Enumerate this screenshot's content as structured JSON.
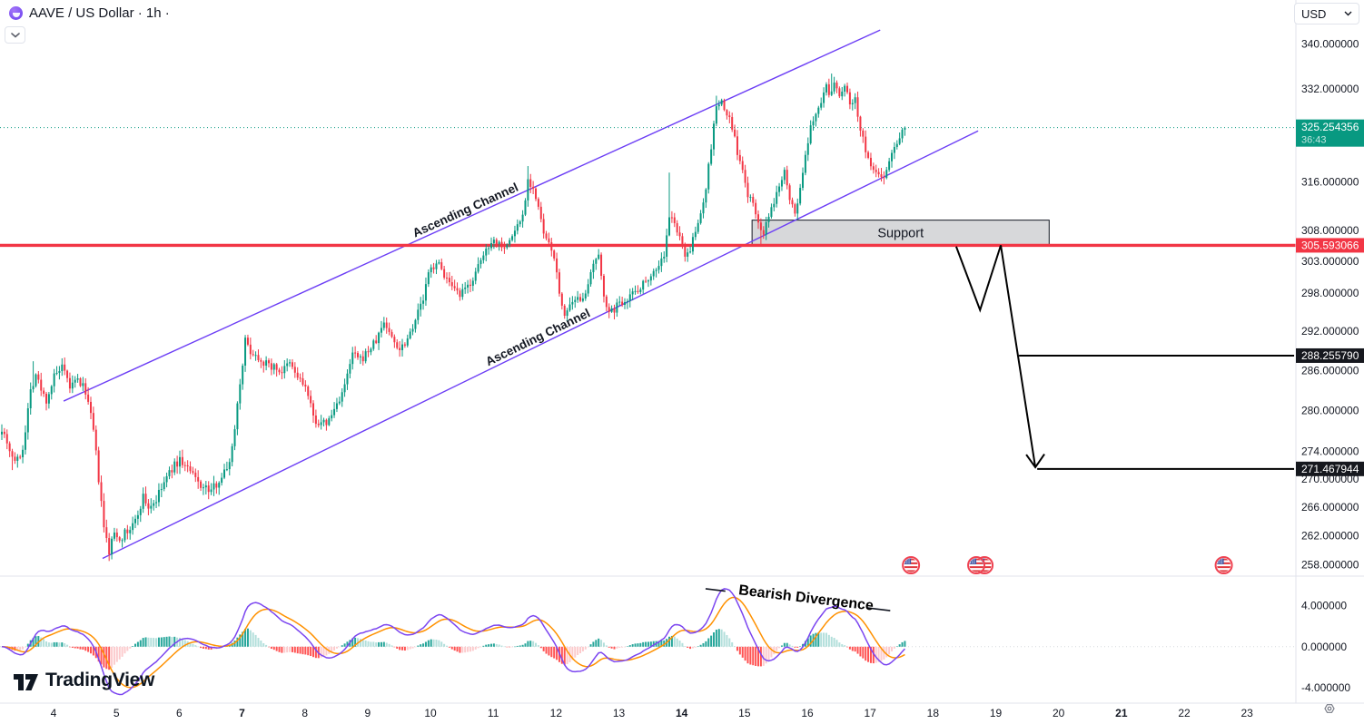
{
  "header": {
    "symbol_title": "AAVE / US Dollar · 1h ·"
  },
  "currency_selector": {
    "value": "USD"
  },
  "watermark_logo": {
    "text": "TradingView"
  },
  "chart_data": {
    "type": "candlestick",
    "title": "AAVE / US Dollar",
    "interval": "1h",
    "scale": "logarithmic",
    "colors": {
      "up": "#089981",
      "down": "#f23645",
      "channel": "#6c3ef5",
      "level_red": "#f23645",
      "macd_line": "#7b45f0",
      "signal_line": "#ff9100",
      "hist_up": "#26a69a",
      "hist_up_weak": "#b2dfdb",
      "hist_down": "#ff5252",
      "hist_down_weak": "#fccbcd",
      "last_price_label": "#089981",
      "target_label": "#16181e"
    },
    "price_axis": {
      "labels": [
        340,
        332,
        316,
        308,
        303,
        298,
        292,
        286,
        280,
        274,
        270,
        266,
        262,
        258
      ],
      "format_decimals": 6
    },
    "time_axis": {
      "days": [
        4,
        5,
        6,
        7,
        8,
        9,
        10,
        11,
        12,
        13,
        14,
        15,
        16,
        17,
        18,
        19,
        20,
        21,
        22,
        23
      ],
      "bold_days": [
        7,
        14,
        21
      ]
    },
    "last_price": {
      "value": 325.254356,
      "countdown": "36:43"
    },
    "levels": {
      "resistance": 305.593066,
      "targets": [
        288.25579,
        271.467944
      ]
    },
    "support_zone": {
      "label": "Support",
      "from_day": 15.12,
      "to_day": 19.85,
      "price_top": 309.7,
      "price_bottom": 305.593066
    },
    "channel": {
      "label": "Ascending Channel",
      "upper": {
        "from_day_price": [
          4.16,
          281.4
        ],
        "to_day_price": [
          17.16,
          342.5
        ]
      },
      "lower": {
        "from_day_price": [
          4.78,
          258.9
        ],
        "to_day_price": [
          18.72,
          324.7
        ]
      }
    },
    "forecast_path": {
      "points_day_price": [
        [
          18.37,
          305.4
        ],
        [
          18.75,
          295.3
        ],
        [
          19.08,
          305.6
        ],
        [
          19.63,
          271.7
        ]
      ],
      "arrow_at_end": true
    },
    "target_lines": [
      {
        "price": 288.25579,
        "from_day": 19.37,
        "to_day": 23.75
      },
      {
        "price": 271.467944,
        "from_day": 19.66,
        "to_day": 23.75
      }
    ],
    "event_markers": {
      "type": "us-flag",
      "days": [
        17.65,
        18.69,
        22.63
      ],
      "double": [
        false,
        true,
        false
      ]
    },
    "bars": {
      "count": 346,
      "bars_per_day": 24,
      "first_bar_day": 3.176,
      "close_path_anchors": [
        [
          0,
          277.5
        ],
        [
          2,
          275.5
        ],
        [
          4,
          273.2
        ],
        [
          6,
          272.6
        ],
        [
          8,
          274.5
        ],
        [
          11,
          283
        ],
        [
          13,
          285.5
        ],
        [
          15,
          283
        ],
        [
          17,
          281.5
        ],
        [
          20,
          285.0
        ],
        [
          23,
          286.3
        ],
        [
          26,
          283.5
        ],
        [
          29,
          284.5
        ],
        [
          32,
          283
        ],
        [
          35,
          277
        ],
        [
          37,
          270
        ],
        [
          39,
          263
        ],
        [
          41,
          259.8
        ],
        [
          43,
          262.5
        ],
        [
          45,
          261.8
        ],
        [
          48,
          262.5
        ],
        [
          51,
          264
        ],
        [
          54,
          267.5
        ],
        [
          56,
          266
        ],
        [
          59,
          267
        ],
        [
          62,
          269.5
        ],
        [
          65,
          271.5
        ],
        [
          68,
          272.8
        ],
        [
          71,
          271.5
        ],
        [
          74,
          270
        ],
        [
          77,
          268.8
        ],
        [
          80,
          268.3
        ],
        [
          83,
          270
        ],
        [
          86,
          271.5
        ],
        [
          88,
          274.5
        ],
        [
          90,
          281
        ],
        [
          93,
          290.5
        ],
        [
          95,
          289
        ],
        [
          98,
          288
        ],
        [
          101,
          287
        ],
        [
          104,
          286.5
        ],
        [
          107,
          285.8
        ],
        [
          110,
          287
        ],
        [
          113,
          285
        ],
        [
          116,
          283.5
        ],
        [
          119,
          279
        ],
        [
          122,
          277.8
        ],
        [
          125,
          278.5
        ],
        [
          128,
          281
        ],
        [
          131,
          283.5
        ],
        [
          134,
          288.5
        ],
        [
          137,
          287.5
        ],
        [
          140,
          289
        ],
        [
          143,
          290.5
        ],
        [
          146,
          293.5
        ],
        [
          149,
          291
        ],
        [
          152,
          289.3
        ],
        [
          155,
          291
        ],
        [
          158,
          294
        ],
        [
          161,
          297
        ],
        [
          163,
          301
        ],
        [
          166,
          303
        ],
        [
          169,
          301
        ],
        [
          172,
          298.5
        ],
        [
          175,
          297.5
        ],
        [
          178,
          299
        ],
        [
          181,
          301
        ],
        [
          184,
          304
        ],
        [
          187,
          306.5
        ],
        [
          190,
          306
        ],
        [
          193,
          305.5
        ],
        [
          196,
          308
        ],
        [
          199,
          310.5
        ],
        [
          201,
          316.5
        ],
        [
          203,
          315
        ],
        [
          205,
          311.5
        ],
        [
          207,
          307.5
        ],
        [
          209,
          305.5
        ],
        [
          211,
          304
        ],
        [
          213,
          297.5
        ],
        [
          215,
          294.8
        ],
        [
          218,
          296
        ],
        [
          221,
          297.2
        ],
        [
          224,
          298.8
        ],
        [
          226,
          302.5
        ],
        [
          228,
          303.5
        ],
        [
          230,
          298
        ],
        [
          232,
          294.5
        ],
        [
          235,
          296
        ],
        [
          238,
          297
        ],
        [
          241,
          298
        ],
        [
          244,
          299
        ],
        [
          247,
          300.5
        ],
        [
          250,
          301.8
        ],
        [
          253,
          304
        ],
        [
          255,
          310
        ],
        [
          257,
          309.5
        ],
        [
          259,
          306.5
        ],
        [
          261,
          304.3
        ],
        [
          263,
          305
        ],
        [
          266,
          309
        ],
        [
          269,
          315
        ],
        [
          271,
          322
        ],
        [
          273,
          329
        ],
        [
          275,
          329.5
        ],
        [
          277,
          327.5
        ],
        [
          279,
          325.5
        ],
        [
          281,
          321
        ],
        [
          283,
          317.5
        ],
        [
          285,
          314
        ],
        [
          287,
          312
        ],
        [
          289,
          309.5
        ],
        [
          291,
          307.5
        ],
        [
          293,
          310
        ],
        [
          296,
          314
        ],
        [
          299,
          318.5
        ],
        [
          301,
          313.5
        ],
        [
          303,
          310.5
        ],
        [
          305,
          315
        ],
        [
          307,
          320
        ],
        [
          309,
          325
        ],
        [
          311,
          328
        ],
        [
          313,
          330
        ],
        [
          315,
          332.5
        ],
        [
          316,
          330.5
        ],
        [
          318,
          333
        ],
        [
          320,
          331
        ],
        [
          322,
          332.5
        ],
        [
          324,
          329.5
        ],
        [
          326,
          330.5
        ],
        [
          327,
          327
        ],
        [
          329,
          323.5
        ],
        [
          331,
          319.5
        ],
        [
          333,
          318
        ],
        [
          335,
          317
        ],
        [
          337,
          317.2
        ],
        [
          339,
          319.5
        ],
        [
          341,
          322
        ],
        [
          343,
          324
        ],
        [
          345,
          325.254356
        ]
      ],
      "wick_overrides": [
        [
          4,
          "low",
          271.3
        ],
        [
          12,
          "high",
          287.4
        ],
        [
          23,
          "high",
          286.8
        ],
        [
          41,
          "low",
          258.9
        ],
        [
          201,
          "high",
          318.7
        ],
        [
          255,
          "high",
          317.6
        ],
        [
          273,
          "high",
          330.8
        ],
        [
          290,
          "low",
          305.8
        ],
        [
          317,
          "high",
          334.7
        ],
        [
          336,
          "low",
          316.1
        ]
      ],
      "noise_seed": 7
    },
    "macd": {
      "axis_labels": [
        4,
        0,
        -4
      ],
      "annotation": {
        "text": "Bearish Divergence",
        "line_from_day_val": [
          14.38,
          5.65
        ],
        "line_to_day_val": [
          17.32,
          3.52
        ]
      }
    }
  }
}
